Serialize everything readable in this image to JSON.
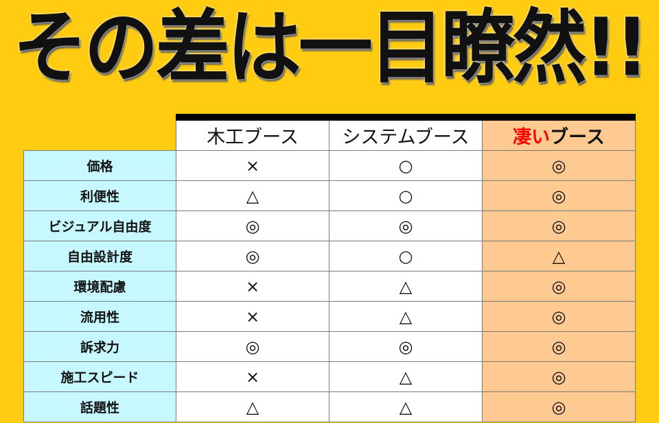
{
  "title": "その差は一目瞭然!!",
  "columns": [
    {
      "label": "木工ブース"
    },
    {
      "label": "システムブース"
    },
    {
      "label_emphasis": "凄い",
      "label": "ブース"
    }
  ],
  "rows": [
    {
      "label": "価格",
      "values": [
        "×",
        "○",
        "◎"
      ]
    },
    {
      "label": "利便性",
      "values": [
        "△",
        "○",
        "◎"
      ]
    },
    {
      "label": "ビジュアル自由度",
      "values": [
        "◎",
        "◎",
        "◎"
      ]
    },
    {
      "label": "自由設計度",
      "values": [
        "◎",
        "○",
        "△"
      ]
    },
    {
      "label": "環境配慮",
      "values": [
        "×",
        "△",
        "◎"
      ]
    },
    {
      "label": "流用性",
      "values": [
        "×",
        "△",
        "◎"
      ]
    },
    {
      "label": "訴求力",
      "values": [
        "◎",
        "◎",
        "◎"
      ]
    },
    {
      "label": "施工スピード",
      "values": [
        "×",
        "△",
        "◎"
      ]
    },
    {
      "label": "話題性",
      "values": [
        "△",
        "△",
        "◎"
      ]
    }
  ],
  "colors": {
    "background": "#FFCC12",
    "label_bg": "#C8F8FF",
    "highlight_bg": "#FFC992",
    "emphasis": "#FF0000"
  }
}
